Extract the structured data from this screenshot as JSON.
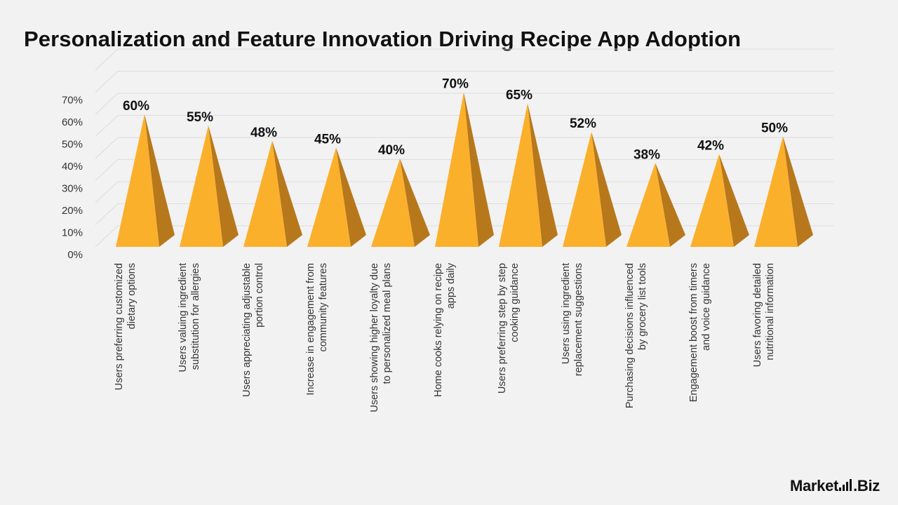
{
  "title": "Personalization and Feature Innovation Driving Recipe App Adoption",
  "brand": {
    "name": "Market",
    "suffix": ".Biz"
  },
  "colors": {
    "front_face": "#fbb02c",
    "side_face": "#b7781c",
    "grid": "#dcdcdc",
    "text": "#111111",
    "axis_text": "#333333"
  },
  "chart_data": {
    "type": "bar",
    "style": "3d-pyramid",
    "categories": [
      "Users preferring customized dietary options",
      "Users valuing ingredient substitution for allergies",
      "Users appreciating adjustable portion control",
      "Increase in engagement from community features",
      "Users showing higher loyalty due to personalized meal plans",
      "Home cooks relying on recipe apps daily",
      "Users preferring step by step cooking guidance",
      "Users using ingredient replacement suggestions",
      "Purchasing decisions influenced by grocery list tools",
      "Engagement boost from timers and voice guidance",
      "Users favoring detailed nutritional information"
    ],
    "category_lines": [
      [
        "Users preferring customized",
        "dietary options"
      ],
      [
        "Users valuing ingredient",
        "substitution for allergies"
      ],
      [
        "Users appreciating adjustable",
        "portion control"
      ],
      [
        "Increase in engagement from",
        "community features"
      ],
      [
        "Users showing higher loyalty due",
        "to personalized meal plans"
      ],
      [
        "Home cooks relying on recipe",
        "apps daily"
      ],
      [
        "Users preferring step by step",
        "cooking guidance"
      ],
      [
        "Users using ingredient",
        "replacement suggestions"
      ],
      [
        "Purchasing decisions influenced",
        "by grocery list tools"
      ],
      [
        "Engagement boost from timers",
        "and voice guidance"
      ],
      [
        "Users favoring detailed",
        "nutritional information"
      ]
    ],
    "values": [
      60,
      55,
      48,
      45,
      40,
      70,
      65,
      52,
      38,
      42,
      50
    ],
    "data_labels": [
      "60%",
      "55%",
      "48%",
      "45%",
      "40%",
      "70%",
      "65%",
      "52%",
      "38%",
      "42%",
      "50%"
    ],
    "y_ticks": [
      "0%",
      "10%",
      "20%",
      "30%",
      "40%",
      "50%",
      "60%",
      "70%"
    ],
    "ylim": [
      0,
      80
    ],
    "grid": true,
    "legend": "none"
  }
}
